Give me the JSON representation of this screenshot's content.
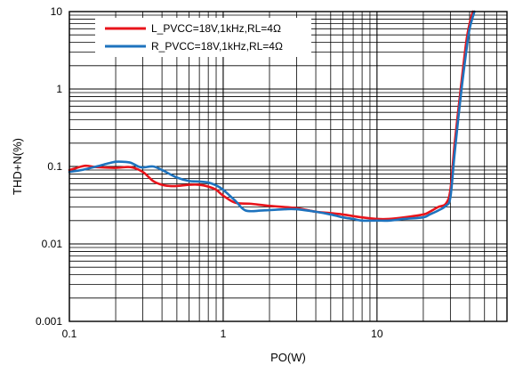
{
  "chart_data": {
    "type": "line",
    "xlabel": "PO(W)",
    "ylabel": "THD+N(%)",
    "xscale": "log",
    "yscale": "log",
    "xlim": [
      0.1,
      70
    ],
    "ylim": [
      0.001,
      10
    ],
    "x_ticks": [
      {
        "value": 0.1,
        "label": "0.1"
      },
      {
        "value": 1,
        "label": "1"
      },
      {
        "value": 10,
        "label": "10"
      }
    ],
    "y_ticks": [
      {
        "value": 0.001,
        "label": "0.001"
      },
      {
        "value": 0.01,
        "label": "0.01"
      },
      {
        "value": 0.1,
        "label": "0.1"
      },
      {
        "value": 1,
        "label": "1"
      },
      {
        "value": 10,
        "label": "10"
      }
    ],
    "grid": true,
    "legend_position": "top-left",
    "series": [
      {
        "name": "L_PVCC=18V,1kHz,RL=4Ω",
        "color": "#e8141b",
        "points": [
          [
            0.1,
            0.09
          ],
          [
            0.11,
            0.095
          ],
          [
            0.12,
            0.1
          ],
          [
            0.13,
            0.102
          ],
          [
            0.15,
            0.098
          ],
          [
            0.2,
            0.096
          ],
          [
            0.25,
            0.098
          ],
          [
            0.3,
            0.085
          ],
          [
            0.35,
            0.065
          ],
          [
            0.4,
            0.058
          ],
          [
            0.45,
            0.056
          ],
          [
            0.5,
            0.056
          ],
          [
            0.6,
            0.058
          ],
          [
            0.7,
            0.058
          ],
          [
            0.8,
            0.055
          ],
          [
            0.9,
            0.05
          ],
          [
            1.0,
            0.042
          ],
          [
            1.2,
            0.034
          ],
          [
            1.5,
            0.033
          ],
          [
            2,
            0.031
          ],
          [
            3,
            0.029
          ],
          [
            4,
            0.026
          ],
          [
            5,
            0.025
          ],
          [
            6,
            0.024
          ],
          [
            8,
            0.022
          ],
          [
            10,
            0.021
          ],
          [
            12,
            0.021
          ],
          [
            15,
            0.022
          ],
          [
            20,
            0.024
          ],
          [
            22,
            0.026
          ],
          [
            25,
            0.03
          ],
          [
            28,
            0.033
          ],
          [
            30,
            0.05
          ],
          [
            32,
            0.2
          ],
          [
            35,
            1.0
          ],
          [
            38,
            4.0
          ],
          [
            40,
            7.0
          ],
          [
            42,
            10
          ]
        ]
      },
      {
        "name": "R_PVCC=18V,1kHz,RL=4Ω",
        "color": "#1e73be",
        "points": [
          [
            0.1,
            0.085
          ],
          [
            0.12,
            0.09
          ],
          [
            0.15,
            0.1
          ],
          [
            0.18,
            0.11
          ],
          [
            0.2,
            0.115
          ],
          [
            0.22,
            0.115
          ],
          [
            0.25,
            0.112
          ],
          [
            0.28,
            0.1
          ],
          [
            0.3,
            0.097
          ],
          [
            0.35,
            0.1
          ],
          [
            0.4,
            0.09
          ],
          [
            0.5,
            0.072
          ],
          [
            0.6,
            0.065
          ],
          [
            0.7,
            0.064
          ],
          [
            0.8,
            0.062
          ],
          [
            0.9,
            0.057
          ],
          [
            1.0,
            0.05
          ],
          [
            1.2,
            0.036
          ],
          [
            1.4,
            0.027
          ],
          [
            1.8,
            0.027
          ],
          [
            2.5,
            0.028
          ],
          [
            3,
            0.028
          ],
          [
            4,
            0.026
          ],
          [
            5,
            0.024
          ],
          [
            6,
            0.022
          ],
          [
            7,
            0.021
          ],
          [
            8,
            0.02
          ],
          [
            10,
            0.02
          ],
          [
            12,
            0.02
          ],
          [
            15,
            0.021
          ],
          [
            20,
            0.022
          ],
          [
            22,
            0.024
          ],
          [
            25,
            0.027
          ],
          [
            28,
            0.031
          ],
          [
            30,
            0.04
          ],
          [
            32,
            0.15
          ],
          [
            35,
            0.8
          ],
          [
            38,
            3.0
          ],
          [
            40,
            6.0
          ],
          [
            43,
            10
          ]
        ]
      }
    ]
  }
}
